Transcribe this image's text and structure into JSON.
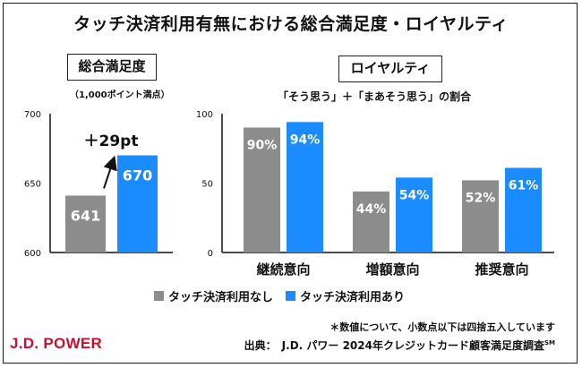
{
  "title": "タッチ決済利用有無における総合満足度・ロイヤルティ",
  "colors": {
    "none": "#8c8c8c",
    "with": "#1a8cff",
    "logo": "#c8102e"
  },
  "left_panel": {
    "heading": "総合満足度",
    "note": "（1,000ポイント満点）"
  },
  "right_panel": {
    "heading": "ロイヤルティ",
    "subtitle": "「そう思う」＋「まあそう思う」の割合"
  },
  "legend": {
    "none": "タッチ決済利用なし",
    "with": "タッチ決済利用あり"
  },
  "footnote": "＊数値について、小数点以下は四捨五入しています",
  "source": {
    "text": "出典：　J.D. パワー 2024年クレジットカード顧客満足度調査",
    "mark": "SM"
  },
  "logo": "J.D. POWER",
  "chart_data": [
    {
      "type": "bar",
      "title": "総合満足度",
      "categories": [
        ""
      ],
      "series": [
        {
          "name": "タッチ決済利用なし",
          "values": [
            641
          ],
          "labels": [
            "641"
          ]
        },
        {
          "name": "タッチ決済利用あり",
          "values": [
            670
          ],
          "labels": [
            "670"
          ]
        }
      ],
      "ylim": [
        600,
        700
      ],
      "yticks": [
        "600",
        "650",
        "700"
      ],
      "annotation": "＋29pt"
    },
    {
      "type": "bar",
      "title": "ロイヤルティ",
      "categories": [
        "継続意向",
        "増額意向",
        "推奨意向"
      ],
      "series": [
        {
          "name": "タッチ決済利用なし",
          "values": [
            90,
            44,
            52
          ],
          "labels": [
            "90%",
            "44%",
            "52%"
          ]
        },
        {
          "name": "タッチ決済利用あり",
          "values": [
            94,
            54,
            61
          ],
          "labels": [
            "94%",
            "54%",
            "61%"
          ]
        }
      ],
      "ylim": [
        0,
        100
      ],
      "yticks": [
        "0",
        "50",
        "100"
      ]
    }
  ]
}
